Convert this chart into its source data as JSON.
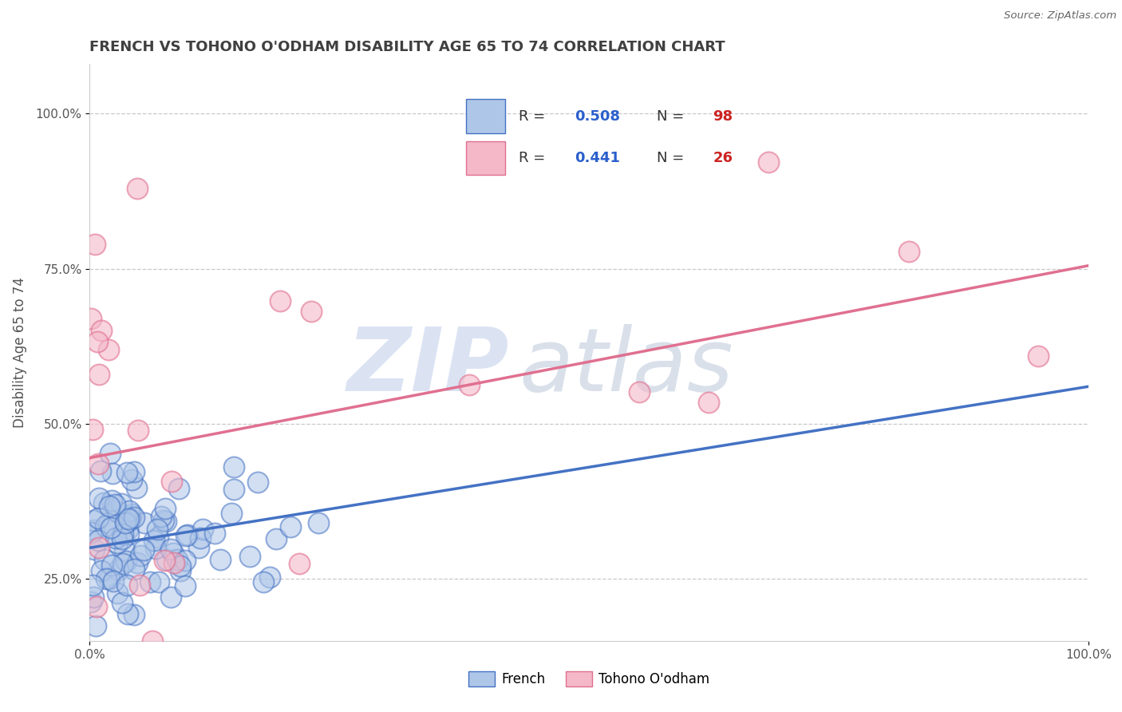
{
  "title": "FRENCH VS TOHONO O'ODHAM DISABILITY AGE 65 TO 74 CORRELATION CHART",
  "source": "Source: ZipAtlas.com",
  "ylabel": "Disability Age 65 to 74",
  "xlim": [
    0.0,
    1.0
  ],
  "ylim": [
    0.15,
    1.08
  ],
  "french_R": 0.508,
  "french_N": 98,
  "tohono_R": 0.441,
  "tohono_N": 26,
  "french_color": "#aec6e8",
  "french_edge_color": "#4472c4",
  "tohono_color": "#f4b8c8",
  "tohono_edge_color": "#e07090",
  "french_line_color": "#4472c4",
  "tohono_line_color": "#e07090",
  "background_color": "#ffffff",
  "grid_color": "#c8c8c8",
  "title_color": "#404040",
  "watermark_zip_color": "#ccd8ee",
  "watermark_atlas_color": "#c0ccdd",
  "legend_text_color": "#333333",
  "legend_R_color": "#2b5fcc",
  "legend_N_color": "#cc2222",
  "french_line_intercept": 0.3,
  "french_line_slope": 0.26,
  "tohono_line_intercept": 0.445,
  "tohono_line_slope": 0.31
}
